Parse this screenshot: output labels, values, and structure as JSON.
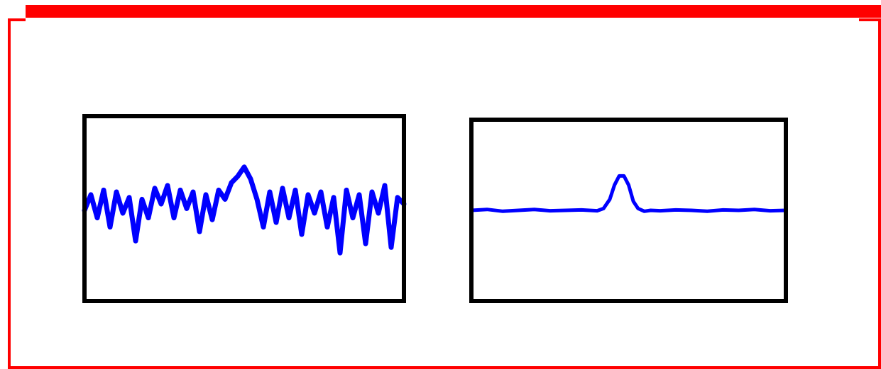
{
  "colors": {
    "frame": "#ff0000",
    "axes": "#000000",
    "series": "#0000ff",
    "background": "#ffffff"
  },
  "chart_data": [
    {
      "type": "line",
      "title": "",
      "xlabel": "",
      "ylabel": "",
      "grid": false,
      "legend": "none",
      "xlim": [
        0,
        1
      ],
      "ylim": [
        -1,
        1
      ],
      "series": [
        {
          "x": [
            0.0,
            0.02,
            0.04,
            0.06,
            0.08,
            0.1,
            0.12,
            0.14,
            0.16,
            0.18,
            0.2,
            0.22,
            0.24,
            0.26,
            0.28,
            0.3,
            0.32,
            0.34,
            0.36,
            0.38,
            0.4,
            0.42,
            0.44,
            0.46,
            0.48,
            0.5,
            0.52,
            0.54,
            0.56,
            0.58,
            0.6,
            0.62,
            0.64,
            0.66,
            0.68,
            0.7,
            0.72,
            0.74,
            0.76,
            0.78,
            0.8,
            0.82,
            0.84,
            0.86,
            0.88,
            0.9,
            0.92,
            0.94,
            0.96,
            0.98,
            1.0
          ],
          "values": [
            -0.02,
            0.15,
            -0.1,
            0.2,
            -0.2,
            0.18,
            -0.05,
            0.12,
            -0.35,
            0.1,
            -0.1,
            0.22,
            0.05,
            0.25,
            -0.1,
            0.2,
            0.0,
            0.18,
            -0.25,
            0.15,
            -0.12,
            0.2,
            0.1,
            0.28,
            0.35,
            0.45,
            0.32,
            0.1,
            -0.2,
            0.18,
            -0.15,
            0.22,
            -0.1,
            0.2,
            -0.28,
            0.15,
            -0.05,
            0.18,
            -0.2,
            0.12,
            -0.48,
            0.2,
            -0.1,
            0.15,
            -0.38,
            0.18,
            -0.05,
            0.25,
            -0.42,
            0.12,
            0.05
          ]
        }
      ]
    },
    {
      "type": "line",
      "title": "",
      "xlabel": "",
      "ylabel": "",
      "grid": false,
      "legend": "none",
      "xlim": [
        0,
        1
      ],
      "ylim": [
        -1,
        1
      ],
      "series": [
        {
          "x": [
            0.0,
            0.05,
            0.1,
            0.15,
            0.2,
            0.25,
            0.3,
            0.35,
            0.4,
            0.42,
            0.44,
            0.455,
            0.47,
            0.485,
            0.5,
            0.515,
            0.53,
            0.55,
            0.57,
            0.6,
            0.65,
            0.7,
            0.75,
            0.8,
            0.85,
            0.9,
            0.95,
            1.0
          ],
          "values": [
            0.0,
            0.01,
            -0.01,
            0.0,
            0.01,
            -0.005,
            0.0,
            0.005,
            -0.005,
            0.02,
            0.12,
            0.28,
            0.38,
            0.38,
            0.28,
            0.1,
            0.02,
            -0.01,
            0.0,
            -0.005,
            0.005,
            0.0,
            -0.01,
            0.005,
            0.0,
            0.01,
            -0.005,
            0.0
          ]
        }
      ]
    }
  ]
}
